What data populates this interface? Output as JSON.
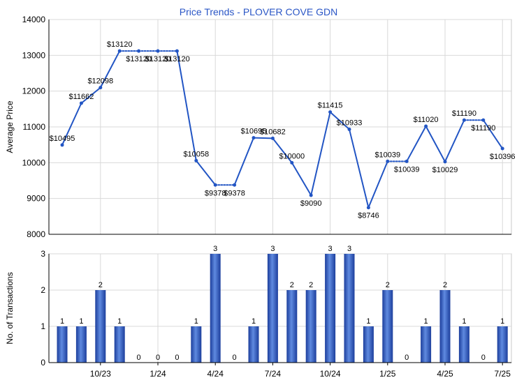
{
  "chart_data": [
    {
      "type": "line",
      "title": "Price Trends - PLOVER COVE GDN",
      "ylabel": "Average Price",
      "ylim": [
        8000,
        14000
      ],
      "yticks": [
        "8000",
        "9000",
        "10000",
        "11000",
        "12000",
        "13000",
        "14000"
      ],
      "grid": true,
      "points": [
        {
          "month": "2023-08",
          "value": 10495,
          "label": "$10495",
          "imputed": false
        },
        {
          "month": "2023-09",
          "value": 11662,
          "label": "$11662",
          "imputed": false
        },
        {
          "month": "2023-10",
          "value": 12098,
          "label": "$12098",
          "imputed": false
        },
        {
          "month": "2023-11",
          "value": 13120,
          "label": "$13120",
          "imputed": false
        },
        {
          "month": "2023-12",
          "value": 13120,
          "label": "$13120",
          "imputed": true
        },
        {
          "month": "2024-01",
          "value": 13120,
          "label": "$13120",
          "imputed": true
        },
        {
          "month": "2024-02",
          "value": 13120,
          "label": "$13120",
          "imputed": true
        },
        {
          "month": "2024-03",
          "value": 10058,
          "label": "$10058",
          "imputed": false
        },
        {
          "month": "2024-04",
          "value": 9378,
          "label": "$9378",
          "imputed": false
        },
        {
          "month": "2024-05",
          "value": 9378,
          "label": "$9378",
          "imputed": true
        },
        {
          "month": "2024-06",
          "value": 10695,
          "label": "$10695",
          "imputed": false
        },
        {
          "month": "2024-07",
          "value": 10682,
          "label": "$10682",
          "imputed": false
        },
        {
          "month": "2024-08",
          "value": 10000,
          "label": "$10000",
          "imputed": false
        },
        {
          "month": "2024-09",
          "value": 9090,
          "label": "$9090",
          "imputed": false
        },
        {
          "month": "2024-10",
          "value": 11415,
          "label": "$11415",
          "imputed": false
        },
        {
          "month": "2024-11",
          "value": 10933,
          "label": "$10933",
          "imputed": false
        },
        {
          "month": "2024-12",
          "value": 8746,
          "label": "$8746",
          "imputed": false
        },
        {
          "month": "2025-01",
          "value": 10039,
          "label": "$10039",
          "imputed": false
        },
        {
          "month": "2025-02",
          "value": 10039,
          "label": "$10039",
          "imputed": true
        },
        {
          "month": "2025-03",
          "value": 11020,
          "label": "$11020",
          "imputed": false
        },
        {
          "month": "2025-04",
          "value": 10029,
          "label": "$10029",
          "imputed": false
        },
        {
          "month": "2025-05",
          "value": 11190,
          "label": "$11190",
          "imputed": false
        },
        {
          "month": "2025-06",
          "value": 11190,
          "label": "$11190",
          "imputed": true
        },
        {
          "month": "2025-07",
          "value": 10396,
          "label": "$10396",
          "imputed": false
        }
      ],
      "colors": {
        "line": "#2255c4",
        "title": "#2a56c6"
      }
    },
    {
      "type": "bar",
      "ylabel": "No. of Transactions",
      "ylim": [
        0,
        3
      ],
      "yticks": [
        "0",
        "1",
        "2",
        "3"
      ],
      "grid": true,
      "x_ticks": [
        {
          "month": "2023-10",
          "label": "10/23"
        },
        {
          "month": "2024-01",
          "label": "1/24"
        },
        {
          "month": "2024-04",
          "label": "4/24"
        },
        {
          "month": "2024-07",
          "label": "7/24"
        },
        {
          "month": "2024-10",
          "label": "10/24"
        },
        {
          "month": "2025-01",
          "label": "1/25"
        },
        {
          "month": "2025-04",
          "label": "4/25"
        },
        {
          "month": "2025-07",
          "label": "7/25"
        }
      ],
      "bars": [
        {
          "month": "2023-08",
          "value": 1
        },
        {
          "month": "2023-09",
          "value": 1
        },
        {
          "month": "2023-10",
          "value": 2
        },
        {
          "month": "2023-11",
          "value": 1
        },
        {
          "month": "2023-12",
          "value": 0
        },
        {
          "month": "2024-01",
          "value": 0
        },
        {
          "month": "2024-02",
          "value": 0
        },
        {
          "month": "2024-03",
          "value": 1
        },
        {
          "month": "2024-04",
          "value": 3
        },
        {
          "month": "2024-05",
          "value": 0
        },
        {
          "month": "2024-06",
          "value": 1
        },
        {
          "month": "2024-07",
          "value": 3
        },
        {
          "month": "2024-08",
          "value": 2
        },
        {
          "month": "2024-09",
          "value": 2
        },
        {
          "month": "2024-10",
          "value": 3
        },
        {
          "month": "2024-11",
          "value": 3
        },
        {
          "month": "2024-12",
          "value": 1
        },
        {
          "month": "2025-01",
          "value": 2
        },
        {
          "month": "2025-02",
          "value": 0
        },
        {
          "month": "2025-03",
          "value": 1
        },
        {
          "month": "2025-04",
          "value": 2
        },
        {
          "month": "2025-05",
          "value": 1
        },
        {
          "month": "2025-06",
          "value": 0
        },
        {
          "month": "2025-07",
          "value": 1
        }
      ],
      "colors": {
        "bar": "#3a62c8"
      }
    }
  ]
}
